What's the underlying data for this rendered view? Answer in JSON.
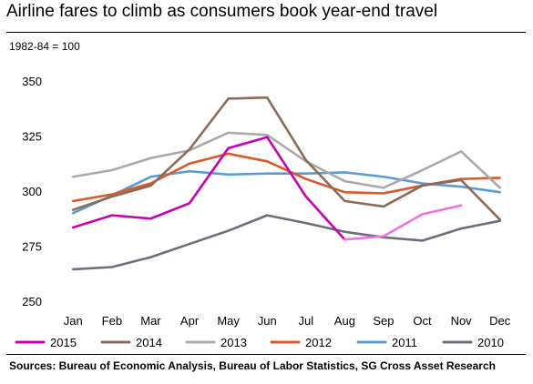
{
  "title": "Airline fares to climb as consumers book year-end travel",
  "source": "Sources: Bureau of Economic Analysis, Bureau of Labor Statistics, SG Cross Asset Research",
  "chart_data": {
    "type": "line",
    "title": "Airline fares to climb as consumers book year-end travel",
    "subtitle": "1982-84 = 100",
    "xlabel": "",
    "ylabel": "",
    "categories": [
      "Jan",
      "Feb",
      "Mar",
      "Apr",
      "May",
      "Jun",
      "Jul",
      "Aug",
      "Sep",
      "Oct",
      "Nov",
      "Dec"
    ],
    "ylim": [
      250,
      350
    ],
    "yticks": [
      250,
      275,
      300,
      325,
      350
    ],
    "grid": false,
    "legend_position": "bottom",
    "series": [
      {
        "name": "2015",
        "color": "#c800b4",
        "values": [
          283.5,
          289,
          287.5,
          294.5,
          319.5,
          324.5,
          297.5,
          278,
          null,
          null,
          null,
          null
        ],
        "projection": {
          "color": "#f070e6",
          "values": [
            null,
            null,
            null,
            null,
            null,
            null,
            null,
            278,
            279.5,
            289.5,
            293.5,
            null
          ]
        }
      },
      {
        "name": "2014",
        "color": "#8b6b59",
        "values": [
          291.5,
          297.5,
          302.5,
          319,
          342,
          342.5,
          314,
          295.5,
          293,
          302.5,
          305,
          287
        ]
      },
      {
        "name": "2013",
        "color": "#aaaaaa",
        "values": [
          306.5,
          309.5,
          315,
          318.5,
          326.5,
          325.5,
          313.5,
          304.5,
          301.5,
          309.5,
          318,
          301.5
        ]
      },
      {
        "name": "2012",
        "color": "#d95a2b",
        "values": [
          295.5,
          298.5,
          303.5,
          312.5,
          317,
          313.5,
          305.5,
          299.5,
          299,
          302.5,
          305.5,
          306
        ]
      },
      {
        "name": "2011",
        "color": "#5b9bd5",
        "values": [
          290,
          298,
          306.5,
          309,
          307.5,
          308,
          308,
          308.5,
          306.5,
          303.5,
          302,
          299.5
        ]
      },
      {
        "name": "2010",
        "color": "#6e6e7a",
        "values": [
          264.5,
          265.5,
          270,
          276,
          282,
          289,
          285.5,
          281.5,
          279,
          277.5,
          283,
          286.5
        ]
      }
    ]
  }
}
